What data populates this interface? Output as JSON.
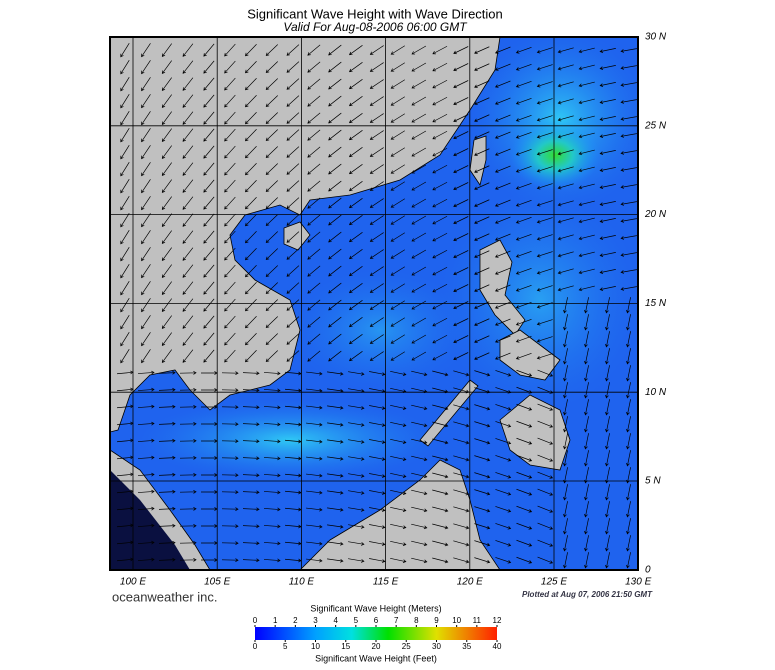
{
  "header": {
    "title": "Significant Wave Height with Wave Direction",
    "subtitle": "Valid For Aug-08-2006 06:00 GMT"
  },
  "map": {
    "lat_labels": [
      "30 N",
      "25 N",
      "20 N",
      "15 N",
      "10 N",
      "5 N",
      "0"
    ],
    "lon_labels": [
      "100 E",
      "105 E",
      "110 E",
      "115 E",
      "120 E",
      "125 E",
      "130 E"
    ]
  },
  "footer": {
    "brand": "oceanweather inc.",
    "plotted": "Plotted at Aug 07, 2006 21:50 GMT"
  },
  "colorbar": {
    "title_meters": "Significant Wave Height (Meters)",
    "title_feet": "Significant Wave Height (Feet)",
    "meters_ticks": [
      0,
      1,
      2,
      3,
      4,
      5,
      6,
      7,
      8,
      9,
      10,
      11,
      12
    ],
    "feet_ticks": [
      0,
      5,
      10,
      15,
      20,
      25,
      30,
      35,
      40
    ]
  }
}
